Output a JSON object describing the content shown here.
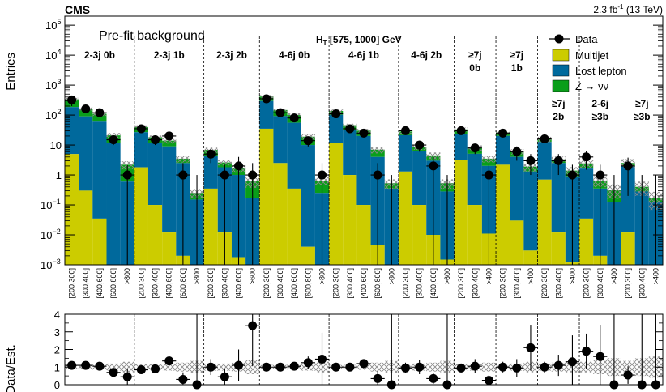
{
  "experiment": "CMS",
  "lumi_label": "2.3 fb",
  "lumi_sup": "-1",
  "energy_label": "(13 TeV)",
  "figure_label": "Pre-fit background",
  "ht_label_prefix": "H",
  "ht_label_sub": "T",
  "ht_label_range": " [575, 1000] GeV",
  "colors": {
    "multijet": "#cccc00",
    "lost_lepton": "#00699c",
    "znunu": "#0a9e1a",
    "data": "#000000",
    "uncertainty": "#888888"
  },
  "chart_data": {
    "type": "bar",
    "title": "Pre-fit background",
    "top_panel": {
      "ylabel": "Entries",
      "yscale": "log",
      "ylim": [
        0.001,
        200000
      ],
      "yticks": [
        {
          "v": 0.001,
          "base": "10",
          "exp": "−3"
        },
        {
          "v": 0.01,
          "base": "10",
          "exp": "−2"
        },
        {
          "v": 0.1,
          "base": "10",
          "exp": "−1"
        },
        {
          "v": 1,
          "base": "1",
          "exp": ""
        },
        {
          "v": 10,
          "base": "10",
          "exp": ""
        },
        {
          "v": 100,
          "base": "10",
          "exp": "2"
        },
        {
          "v": 1000,
          "base": "10",
          "exp": "3"
        },
        {
          "v": 10000,
          "base": "10",
          "exp": "4"
        },
        {
          "v": 100000,
          "base": "10",
          "exp": "5"
        }
      ]
    },
    "ratio_panel": {
      "ylabel": "Data/Est.",
      "ylim": [
        0,
        4
      ],
      "yticks": [
        "0",
        "1",
        "2",
        "3",
        "4"
      ]
    },
    "legend": {
      "position": "top-right",
      "entries": [
        "Data",
        "Multijet",
        "Lost lepton",
        "Z → νν"
      ]
    },
    "groups": [
      {
        "line1": "2-3j 0b",
        "line2": "",
        "bins": [
          {
            "label": "[200,300]",
            "mj": 5.0,
            "ll": 180,
            "zn": 150,
            "data": 320,
            "err": 120,
            "ratio": 1.1,
            "rerr": 0.2,
            "unc": 0.12
          },
          {
            "label": "[300,400]",
            "mj": 0.3,
            "ll": 90,
            "zn": 70,
            "data": 160,
            "err": 25,
            "ratio": 1.1,
            "rerr": 0.12,
            "unc": 0.12
          },
          {
            "label": "[400,600]",
            "mj": 0.035,
            "ll": 60,
            "zn": 50,
            "data": 120,
            "err": 20,
            "ratio": 1.05,
            "rerr": 0.12,
            "unc": 0.15
          },
          {
            "label": "[600,800]",
            "mj": 0.001,
            "ll": 12,
            "zn": 9,
            "data": 15,
            "err": 5,
            "ratio": 0.7,
            "rerr": 0.25,
            "unc": 0.2
          },
          {
            "label": ">800",
            "mj": 0.001,
            "ll": 0.6,
            "zn": 1.6,
            "data": 1,
            "err": 1.1,
            "ratio": 0.45,
            "rerr": 0.45,
            "unc": 0.3
          }
        ]
      },
      {
        "line1": "2-3j 1b",
        "line2": "",
        "bins": [
          {
            "label": "[200,300]",
            "mj": 1.8,
            "ll": 25,
            "zn": 13,
            "data": 35,
            "err": 8,
            "ratio": 0.85,
            "rerr": 0.2,
            "unc": 0.15
          },
          {
            "label": "[300,400]",
            "mj": 0.1,
            "ll": 12,
            "zn": 6,
            "data": 15,
            "err": 5,
            "ratio": 0.9,
            "rerr": 0.25,
            "unc": 0.15
          },
          {
            "label": "[400,600]",
            "mj": 0.012,
            "ll": 9,
            "zn": 5,
            "data": 20,
            "err": 6,
            "ratio": 1.35,
            "rerr": 0.3,
            "unc": 0.2
          },
          {
            "label": "[600,800]",
            "mj": 0.002,
            "ll": 2.5,
            "zn": 1.0,
            "data": 1,
            "err": 1.5,
            "ratio": 0.3,
            "rerr": 0.4,
            "unc": 0.25
          },
          {
            "label": ">800",
            "mj": 0.001,
            "ll": 0.15,
            "zn": 0.1,
            "data": 0.001,
            "err": 1.0,
            "ratio": 0.0,
            "rerr": 4.0,
            "unc": 0.35
          }
        ]
      },
      {
        "line1": "2-3j 2b",
        "line2": "",
        "bins": [
          {
            "label": "[200,300]",
            "mj": 0.35,
            "ll": 4,
            "zn": 2.5,
            "data": 5,
            "err": 2.5,
            "ratio": 1.0,
            "rerr": 0.45,
            "unc": 0.2
          },
          {
            "label": "[300,400]",
            "mj": 0.012,
            "ll": 1.8,
            "zn": 0.8,
            "data": 1,
            "err": 1.2,
            "ratio": 0.45,
            "rerr": 0.45,
            "unc": 0.2
          },
          {
            "label": "[400,600]",
            "mj": 0.0018,
            "ll": 1.0,
            "zn": 0.7,
            "data": 2,
            "err": 2.0,
            "ratio": 1.1,
            "rerr": 0.9,
            "unc": 0.25
          },
          {
            "label": ">600",
            "mj": 0.001,
            "ll": 0.17,
            "zn": 0.45,
            "data": 1,
            "err": 1.5,
            "ratio": 3.35,
            "rerr": 2.3,
            "unc": 0.4
          }
        ]
      },
      {
        "line1": "4-6j 0b",
        "line2": "",
        "bins": [
          {
            "label": "[200,300]",
            "mj": 35,
            "ll": 260,
            "zn": 120,
            "data": 350,
            "err": 50,
            "ratio": 1.0,
            "rerr": 0.15,
            "unc": 0.12
          },
          {
            "label": "[300,400]",
            "mj": 2.5,
            "ll": 90,
            "zn": 55,
            "data": 120,
            "err": 20,
            "ratio": 1.0,
            "rerr": 0.12,
            "unc": 0.12
          },
          {
            "label": "[400,600]",
            "mj": 0.35,
            "ll": 55,
            "zn": 45,
            "data": 80,
            "err": 15,
            "ratio": 1.05,
            "rerr": 0.15,
            "unc": 0.15
          },
          {
            "label": "[600,800]",
            "mj": 0.004,
            "ll": 10,
            "zn": 9,
            "data": 14,
            "err": 5,
            "ratio": 1.25,
            "rerr": 0.35,
            "unc": 0.2
          },
          {
            "label": ">800",
            "mj": 0.001,
            "ll": 0.25,
            "zn": 0.4,
            "data": 1,
            "err": 1.5,
            "ratio": 1.45,
            "rerr": 1.5,
            "unc": 0.3
          }
        ]
      },
      {
        "line1": "4-6j 1b",
        "line2": "",
        "bins": [
          {
            "label": "[200,300]",
            "mj": 12,
            "ll": 90,
            "zn": 35,
            "data": 110,
            "err": 20,
            "ratio": 1.0,
            "rerr": 0.15,
            "unc": 0.12
          },
          {
            "label": "[300,400]",
            "mj": 1.0,
            "ll": 30,
            "zn": 15,
            "data": 35,
            "err": 8,
            "ratio": 1.0,
            "rerr": 0.2,
            "unc": 0.12
          },
          {
            "label": "[400,600]",
            "mj": 0.1,
            "ll": 20,
            "zn": 10,
            "data": 25,
            "err": 7,
            "ratio": 1.2,
            "rerr": 0.25,
            "unc": 0.15
          },
          {
            "label": "[600,800]",
            "mj": 0.0045,
            "ll": 4,
            "zn": 3,
            "data": 1,
            "err": 1.5,
            "ratio": 0.35,
            "rerr": 0.45,
            "unc": 0.25
          },
          {
            "label": ">800",
            "mj": 0.001,
            "ll": 0.35,
            "zn": 0.18,
            "data": 0.001,
            "err": 1.0,
            "ratio": 0.0,
            "rerr": 4.0,
            "unc": 0.35
          }
        ]
      },
      {
        "line1": "4-6j 2b",
        "line2": "",
        "bins": [
          {
            "label": "[200,300]",
            "mj": 1.3,
            "ll": 20,
            "zn": 7,
            "data": 30,
            "err": 7,
            "ratio": 0.95,
            "rerr": 0.3,
            "unc": 0.15
          },
          {
            "label": "[300,400]",
            "mj": 0.1,
            "ll": 6,
            "zn": 2.5,
            "data": 10,
            "err": 4,
            "ratio": 1.0,
            "rerr": 0.4,
            "unc": 0.2
          },
          {
            "label": "[400,600]",
            "mj": 0.01,
            "ll": 3,
            "zn": 1.5,
            "data": 2,
            "err": 2,
            "ratio": 0.35,
            "rerr": 0.3,
            "unc": 0.25
          },
          {
            "label": ">600",
            "mj": 0.0015,
            "ll": 0.28,
            "zn": 0.25,
            "data": 0.001,
            "err": 1.0,
            "ratio": 0.0,
            "rerr": 4.0,
            "unc": 0.35
          }
        ]
      },
      {
        "line1": "≥7j",
        "line2": "0b",
        "bins": [
          {
            "label": "[200,300]",
            "mj": 3.2,
            "ll": 20,
            "zn": 10,
            "data": 30,
            "err": 7,
            "ratio": 0.95,
            "rerr": 0.25,
            "unc": 0.15
          },
          {
            "label": "[300,400]",
            "mj": 0.1,
            "ll": 5,
            "zn": 3,
            "data": 8,
            "err": 3,
            "ratio": 1.05,
            "rerr": 0.4,
            "unc": 0.2
          },
          {
            "label": ">400",
            "mj": 0.011,
            "ll": 2.0,
            "zn": 1.5,
            "data": 1,
            "err": 1.2,
            "ratio": 0.25,
            "rerr": 0.3,
            "unc": 0.25
          }
        ]
      },
      {
        "line1": "≥7j",
        "line2": "1b",
        "bins": [
          {
            "label": "[200,300]",
            "mj": 2.2,
            "ll": 18,
            "zn": 6,
            "data": 25,
            "err": 6,
            "ratio": 1.0,
            "rerr": 0.3,
            "unc": 0.15
          },
          {
            "label": "[300,400]",
            "mj": 0.03,
            "ll": 4,
            "zn": 2,
            "data": 6,
            "err": 3,
            "ratio": 0.95,
            "rerr": 0.5,
            "unc": 0.2
          },
          {
            "label": ">400",
            "mj": 0.003,
            "ll": 1.3,
            "zn": 0.6,
            "data": 3,
            "err": 2,
            "ratio": 2.1,
            "rerr": 1.3,
            "unc": 0.3
          }
        ]
      },
      {
        "line1": "≥7j",
        "line2": "2b",
        "bins": [
          {
            "label": "[200,300]",
            "mj": 0.7,
            "ll": 12,
            "zn": 3,
            "data": 16,
            "err": 4,
            "ratio": 1.0,
            "rerr": 0.3,
            "unc": 0.2
          },
          {
            "label": "[300,400]",
            "mj": 0.012,
            "ll": 2.5,
            "zn": 0.8,
            "data": 3,
            "err": 2,
            "ratio": 1.1,
            "rerr": 0.6,
            "unc": 0.25
          },
          {
            "label": ">400",
            "mj": 0.0012,
            "ll": 0.9,
            "zn": 0.5,
            "data": 1,
            "err": 1.2,
            "ratio": 1.3,
            "rerr": 1.5,
            "unc": 0.3
          }
        ]
      },
      {
        "line1": "2-6j",
        "line2": "≥3b",
        "bins": [
          {
            "label": "[200,300]",
            "mj": 0.035,
            "ll": 1.6,
            "zn": 0.8,
            "data": 4,
            "err": 2.5,
            "ratio": 1.9,
            "rerr": 1.0,
            "unc": 0.3
          },
          {
            "label": "[300,400]",
            "mj": 0.002,
            "ll": 0.35,
            "zn": 0.3,
            "data": 1,
            "err": 1.2,
            "ratio": 1.6,
            "rerr": 1.8,
            "unc": 0.4
          },
          {
            "label": ">400",
            "mj": 0.001,
            "ll": 0.12,
            "zn": 0.2,
            "data": 0.001,
            "err": 1.0,
            "ratio": 0.0,
            "rerr": 4.0,
            "unc": 0.5
          }
        ]
      },
      {
        "line1": "≥7j",
        "line2": "≥3b",
        "bins": [
          {
            "label": "[200,300]",
            "mj": 0.012,
            "ll": 2.0,
            "zn": 0.5,
            "data": 2,
            "err": 1.8,
            "ratio": 0.55,
            "rerr": 0.5,
            "unc": 0.35
          },
          {
            "label": "[300,400]",
            "mj": 0.001,
            "ll": 0.28,
            "zn": 0.12,
            "data": 0.001,
            "err": 1.0,
            "ratio": 0.0,
            "rerr": 4.0,
            "unc": 0.5
          },
          {
            "label": ">400",
            "mj": 0.001,
            "ll": 0.12,
            "zn": 0.05,
            "data": 0.001,
            "err": 1.0,
            "ratio": 0.0,
            "rerr": 4.0,
            "unc": 0.6
          }
        ]
      }
    ]
  }
}
